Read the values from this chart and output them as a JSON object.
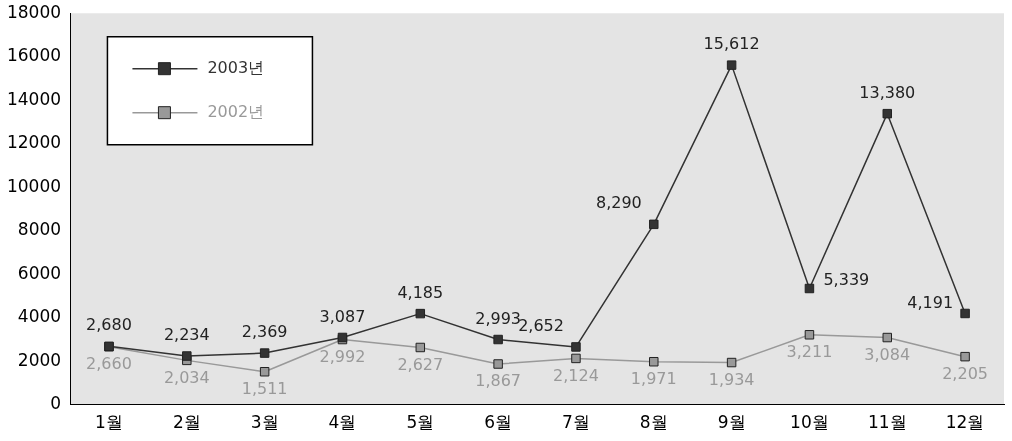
{
  "chart_data": {
    "type": "line",
    "categories": [
      "1월",
      "2월",
      "3월",
      "4월",
      "5월",
      "6월",
      "7월",
      "8월",
      "9월",
      "10월",
      "11월",
      "12월"
    ],
    "series": [
      {
        "name": "2003년",
        "color": "#333333",
        "values": [
          2680,
          2234,
          2369,
          3087,
          4185,
          2993,
          2652,
          8290,
          15612,
          5339,
          13380,
          4191
        ],
        "value_labels": [
          "2,680",
          "2,234",
          "2,369",
          "3,087",
          "4,185",
          "2,993",
          "2,652",
          "8,290",
          "15,612",
          "5,339",
          "13,380",
          "4,191"
        ]
      },
      {
        "name": "2002년",
        "color": "#999999",
        "values": [
          2660,
          2034,
          1511,
          2992,
          2627,
          1867,
          2124,
          1971,
          1934,
          3211,
          3084,
          2205
        ],
        "value_labels": [
          "2,660",
          "2,034",
          "1,511",
          "2,992",
          "2,627",
          "1,867",
          "2,124",
          "1,971",
          "1,934",
          "3,211",
          "3,084",
          "2,205"
        ]
      }
    ],
    "ylim": [
      0,
      18000
    ],
    "yticks": [
      0,
      2000,
      4000,
      6000,
      8000,
      10000,
      12000,
      14000,
      16000,
      18000
    ],
    "legend": "top left",
    "marker": "square",
    "line_style": "solid"
  }
}
